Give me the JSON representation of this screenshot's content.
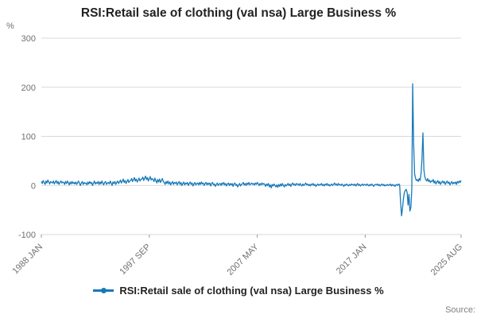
{
  "page": {
    "title": "RSI:Retail sale of clothing (val nsa) Large Business %",
    "source_label": "Source:"
  },
  "chart_data": {
    "type": "line",
    "title": "RSI:Retail sale of clothing (val nsa) Large Business %",
    "xlabel": "",
    "ylabel": "%",
    "frequency": "monthly",
    "x_start": "1988 JAN",
    "x_end": "2025 AUG",
    "ylim": [
      -100,
      300
    ],
    "y_ticks": [
      -100,
      0,
      100,
      200,
      300
    ],
    "x_ticks": [
      {
        "label": "1988 JAN",
        "index": 0
      },
      {
        "label": "1997 SEP",
        "index": 116
      },
      {
        "label": "2007 MAY",
        "index": 232
      },
      {
        "label": "2017 JAN",
        "index": 348
      },
      {
        "label": "2025 AUG",
        "index": 451
      }
    ],
    "grid": true,
    "legend_position": "bottom",
    "series": [
      {
        "name": "RSI:Retail sale of clothing (val nsa) Large Business %",
        "color": "#1779ba",
        "values": [
          8,
          4,
          10,
          6,
          2,
          9,
          5,
          11,
          7,
          3,
          8,
          6,
          5,
          9,
          3,
          7,
          10,
          4,
          8,
          2,
          6,
          9,
          5,
          7,
          6,
          2,
          8,
          4,
          9,
          5,
          1,
          7,
          3,
          8,
          4,
          6,
          3,
          7,
          2,
          6,
          9,
          4,
          0,
          5,
          8,
          2,
          6,
          4,
          5,
          1,
          7,
          3,
          8,
          4,
          6,
          0,
          5,
          9,
          3,
          6,
          4,
          8,
          2,
          7,
          3,
          9,
          5,
          1,
          6,
          8,
          2,
          5,
          6,
          3,
          9,
          5,
          0,
          7,
          4,
          8,
          2,
          6,
          9,
          4,
          7,
          11,
          5,
          9,
          13,
          6,
          10,
          4,
          8,
          12,
          6,
          9,
          10,
          14,
          8,
          12,
          16,
          9,
          13,
          7,
          11,
          15,
          9,
          12,
          13,
          17,
          10,
          15,
          19,
          12,
          16,
          9,
          14,
          18,
          11,
          14,
          12,
          8,
          15,
          10,
          5,
          12,
          7,
          13,
          6,
          10,
          14,
          8,
          6,
          2,
          8,
          4,
          9,
          3,
          7,
          1,
          5,
          8,
          2,
          6,
          4,
          7,
          1,
          5,
          8,
          2,
          6,
          0,
          4,
          7,
          1,
          5,
          3,
          6,
          0,
          4,
          7,
          2,
          5,
          -1,
          3,
          6,
          1,
          4,
          5,
          1,
          6,
          2,
          7,
          3,
          5,
          0,
          4,
          6,
          1,
          5,
          2,
          5,
          -1,
          4,
          6,
          1,
          3,
          -2,
          2,
          5,
          0,
          3,
          4,
          0,
          5,
          2,
          6,
          1,
          4,
          -1,
          3,
          5,
          0,
          4,
          1,
          4,
          -2,
          3,
          5,
          0,
          2,
          -3,
          1,
          4,
          -1,
          2,
          3,
          6,
          1,
          4,
          0,
          5,
          2,
          6,
          1,
          3,
          5,
          2,
          4,
          1,
          5,
          2,
          6,
          3,
          0,
          4,
          1,
          5,
          2,
          4,
          2,
          -2,
          3,
          0,
          4,
          -3,
          1,
          -5,
          2,
          -1,
          3,
          0,
          -3,
          1,
          -4,
          2,
          -2,
          3,
          -1,
          4,
          0,
          -3,
          2,
          -1,
          1,
          4,
          0,
          3,
          -2,
          2,
          5,
          1,
          3,
          0,
          4,
          2,
          3,
          0,
          4,
          1,
          -1,
          3,
          0,
          2,
          5,
          1,
          3,
          0,
          2,
          -1,
          3,
          1,
          4,
          0,
          2,
          -2,
          1,
          3,
          0,
          2,
          1,
          4,
          0,
          2,
          -1,
          3,
          1,
          4,
          0,
          2,
          -1,
          1,
          3,
          0,
          2,
          5,
          1,
          3,
          0,
          4,
          1,
          2,
          0,
          3,
          1,
          -2,
          2,
          0,
          3,
          1,
          -1,
          2,
          0,
          3,
          1,
          2,
          0,
          3,
          -1,
          2,
          4,
          0,
          2,
          -1,
          1,
          3,
          0,
          2,
          2,
          0,
          3,
          1,
          -1,
          2,
          0,
          3,
          1,
          -2,
          1,
          2,
          1,
          3,
          0,
          2,
          -1,
          1,
          3,
          0,
          2,
          -1,
          1,
          0,
          2,
          0,
          1,
          3,
          -1,
          2,
          0,
          1,
          -2,
          1,
          2,
          0,
          3,
          1,
          -35,
          -62,
          -48,
          -28,
          -15,
          -10,
          -8,
          -14,
          -40,
          -18,
          -52,
          -45,
          -8,
          207,
          85,
          24,
          15,
          10,
          12,
          8,
          14,
          10,
          25,
          55,
          107,
          32,
          18,
          12,
          9,
          14,
          8,
          11,
          6,
          9,
          8,
          12,
          5,
          9,
          3,
          7,
          10,
          4,
          8,
          2,
          6,
          9,
          5,
          8,
          2,
          6,
          9,
          4,
          7,
          1,
          5,
          8,
          3,
          6,
          4,
          7,
          2,
          8,
          5,
          9,
          6,
          10
        ]
      }
    ],
    "style": {
      "grid_color": "#d9d9d9",
      "tick_label_color": "#707070",
      "title_color": "#222222"
    }
  }
}
